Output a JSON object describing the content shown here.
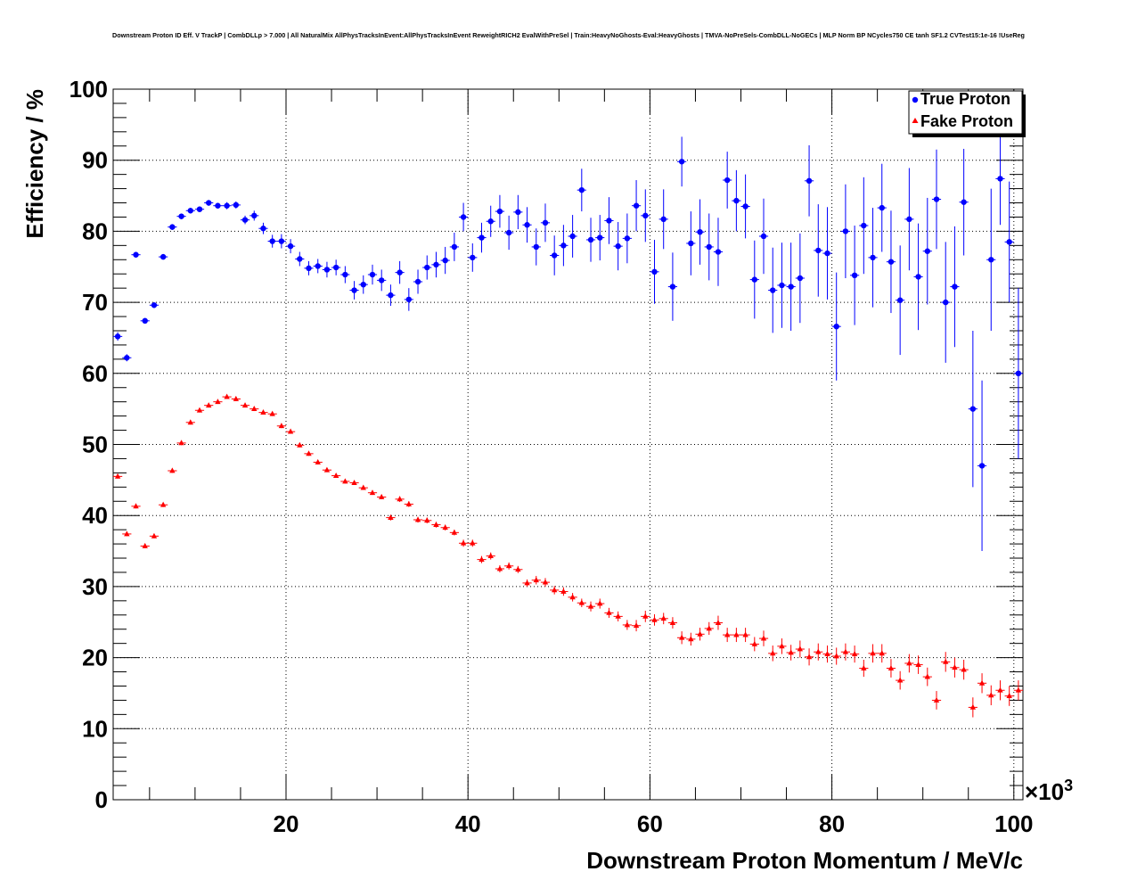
{
  "chart_data": {
    "type": "scatter",
    "title": "Downstream Proton ID Eff. V TrackP | CombDLLp > 7.000 | All NaturalMix AllPhysTracksInEvent:AllPhysTracksInEvent ReweightRICH2 EvalWithPreSel | Train:HeavyNoGhosts-Eval:HeavyGhosts | TMVA-NoPreSels-CombDLL-NoGECs | MLP Norm BP NCycles750 CE tanh SF1.2 CVTest15:1e-16 !UseReg",
    "xlabel": "Downstream Proton Momentum / MeV/c",
    "ylabel": "Efficiency / %",
    "x_multiplier": "×10",
    "x_multiplier_exp": "3",
    "xlim": [
      1,
      101
    ],
    "ylim": [
      0,
      100
    ],
    "x_ticks": [
      "20",
      "40",
      "60",
      "80",
      "100"
    ],
    "x_tick_values": [
      20,
      40,
      60,
      80,
      100
    ],
    "y_ticks": [
      "0",
      "10",
      "20",
      "30",
      "40",
      "50",
      "60",
      "70",
      "80",
      "90",
      "100"
    ],
    "y_tick_values": [
      0,
      10,
      20,
      30,
      40,
      50,
      60,
      70,
      80,
      90,
      100
    ],
    "grid": true,
    "legend_position": "top-right",
    "series": [
      {
        "name": "True Proton",
        "color": "#0000ff",
        "marker": "circle",
        "x": [
          1.5,
          2.5,
          3.5,
          4.5,
          5.5,
          6.5,
          7.5,
          8.5,
          9.5,
          10.5,
          11.5,
          12.5,
          13.5,
          14.5,
          15.5,
          16.5,
          17.5,
          18.5,
          19.5,
          20.5,
          21.5,
          22.5,
          23.5,
          24.5,
          25.5,
          26.5,
          27.5,
          28.5,
          29.5,
          30.5,
          31.5,
          32.5,
          33.5,
          34.5,
          35.5,
          36.5,
          37.5,
          38.5,
          39.5,
          40.5,
          41.5,
          42.5,
          43.5,
          44.5,
          45.5,
          46.5,
          47.5,
          48.5,
          49.5,
          50.5,
          51.5,
          52.5,
          53.5,
          54.5,
          55.5,
          56.5,
          57.5,
          58.5,
          59.5,
          60.5,
          61.5,
          62.5,
          63.5,
          64.5,
          65.5,
          66.5,
          67.5,
          68.5,
          69.5,
          70.5,
          71.5,
          72.5,
          73.5,
          74.5,
          75.5,
          76.5,
          77.5,
          78.5,
          79.5,
          80.5,
          81.5,
          82.5,
          83.5,
          84.5,
          85.5,
          86.5,
          87.5,
          88.5,
          89.5,
          90.5,
          91.5,
          92.5,
          93.5,
          94.5,
          95.5,
          96.5,
          97.5,
          98.5,
          99.5,
          100.5
        ],
        "y": [
          65.2,
          62.2,
          76.7,
          67.4,
          69.6,
          76.4,
          80.6,
          82.1,
          82.9,
          83.1,
          84.0,
          83.6,
          83.6,
          83.7,
          81.6,
          82.2,
          80.4,
          78.6,
          78.6,
          77.9,
          76.1,
          74.8,
          75.1,
          74.6,
          74.9,
          73.9,
          71.7,
          72.5,
          73.9,
          73.1,
          71.0,
          74.2,
          70.4,
          72.9,
          74.9,
          75.3,
          75.9,
          77.8,
          82.0,
          76.3,
          79.1,
          81.4,
          82.8,
          79.8,
          82.7,
          80.9,
          77.8,
          81.2,
          76.6,
          78.0,
          79.3,
          85.8,
          78.8,
          79.1,
          81.5,
          77.9,
          79.0,
          83.6,
          82.2,
          74.3,
          81.7,
          72.2,
          89.8,
          78.3,
          79.9,
          77.8,
          77.1,
          87.2,
          84.3,
          83.5,
          73.2,
          79.3,
          71.7,
          72.4,
          72.2,
          73.4,
          87.1,
          77.3,
          76.9,
          66.6,
          80.0,
          73.8,
          80.8,
          76.3,
          83.3,
          75.7,
          70.3,
          81.7,
          73.6,
          77.2,
          84.5,
          70.0,
          72.2,
          84.1,
          55.0,
          47.0,
          76.0,
          87.4,
          78.5,
          60.0
        ],
        "yerr": [
          0.6,
          0.5,
          0.4,
          0.4,
          0.4,
          0.4,
          0.4,
          0.4,
          0.4,
          0.4,
          0.4,
          0.4,
          0.5,
          0.5,
          0.6,
          0.7,
          0.8,
          0.9,
          1.0,
          1.0,
          1.0,
          1.0,
          1.0,
          1.1,
          1.1,
          1.2,
          1.3,
          1.3,
          1.4,
          1.5,
          1.5,
          1.6,
          1.6,
          1.7,
          1.7,
          1.8,
          1.9,
          2.0,
          2.0,
          2.0,
          2.1,
          2.2,
          2.3,
          2.4,
          2.4,
          2.5,
          2.6,
          2.7,
          2.8,
          2.9,
          3.0,
          3.0,
          3.1,
          3.2,
          3.3,
          3.4,
          3.5,
          3.6,
          3.7,
          4.5,
          4.2,
          4.8,
          3.5,
          4.5,
          4.6,
          4.7,
          4.8,
          4.0,
          4.3,
          4.5,
          5.5,
          5.3,
          6.0,
          6.0,
          6.2,
          6.3,
          5.0,
          6.5,
          6.5,
          7.6,
          6.6,
          7.0,
          6.8,
          7.0,
          6.2,
          7.2,
          7.7,
          7.2,
          7.5,
          7.5,
          7.0,
          8.5,
          8.5,
          7.5,
          11.0,
          12.0,
          10.0,
          6.5,
          8.5,
          12.0
        ]
      },
      {
        "name": "Fake Proton",
        "color": "#ff0000",
        "marker": "triangle",
        "x": [
          1.5,
          2.5,
          3.5,
          4.5,
          5.5,
          6.5,
          7.5,
          8.5,
          9.5,
          10.5,
          11.5,
          12.5,
          13.5,
          14.5,
          15.5,
          16.5,
          17.5,
          18.5,
          19.5,
          20.5,
          21.5,
          22.5,
          23.5,
          24.5,
          25.5,
          26.5,
          27.5,
          28.5,
          29.5,
          30.5,
          31.5,
          32.5,
          33.5,
          34.5,
          35.5,
          36.5,
          37.5,
          38.5,
          39.5,
          40.5,
          41.5,
          42.5,
          43.5,
          44.5,
          45.5,
          46.5,
          47.5,
          48.5,
          49.5,
          50.5,
          51.5,
          52.5,
          53.5,
          54.5,
          55.5,
          56.5,
          57.5,
          58.5,
          59.5,
          60.5,
          61.5,
          62.5,
          63.5,
          64.5,
          65.5,
          66.5,
          67.5,
          68.5,
          69.5,
          70.5,
          71.5,
          72.5,
          73.5,
          74.5,
          75.5,
          76.5,
          77.5,
          78.5,
          79.5,
          80.5,
          81.5,
          82.5,
          83.5,
          84.5,
          85.5,
          86.5,
          87.5,
          88.5,
          89.5,
          90.5,
          91.5,
          92.5,
          93.5,
          94.5,
          95.5,
          96.5,
          97.5,
          98.5,
          99.5,
          100.5
        ],
        "y": [
          45.5,
          37.4,
          41.3,
          35.7,
          37.1,
          41.5,
          46.3,
          50.2,
          53.1,
          54.8,
          55.5,
          56.0,
          56.7,
          56.4,
          55.5,
          55.0,
          54.5,
          54.3,
          52.6,
          51.8,
          49.9,
          48.7,
          47.5,
          46.4,
          45.6,
          44.8,
          44.6,
          43.9,
          43.2,
          42.6,
          39.7,
          42.3,
          41.6,
          39.4,
          39.3,
          38.7,
          38.3,
          37.6,
          36.1,
          36.1,
          33.8,
          34.3,
          32.5,
          32.9,
          32.4,
          30.5,
          30.9,
          30.6,
          29.5,
          29.3,
          28.5,
          27.7,
          27.2,
          27.6,
          26.3,
          25.8,
          24.6,
          24.5,
          25.8,
          25.3,
          25.5,
          24.9,
          22.8,
          22.6,
          23.3,
          24.1,
          24.9,
          23.2,
          23.2,
          23.2,
          21.9,
          22.7,
          20.6,
          21.6,
          20.7,
          21.2,
          20.1,
          20.8,
          20.5,
          20.2,
          20.8,
          20.5,
          18.5,
          20.6,
          20.6,
          18.5,
          16.8,
          19.2,
          19.0,
          17.3,
          14.0,
          19.4,
          18.6,
          18.3,
          13.0,
          16.4,
          14.7,
          15.4,
          14.6,
          15.4
        ],
        "yerr": [
          0.3,
          0.3,
          0.3,
          0.3,
          0.3,
          0.3,
          0.3,
          0.3,
          0.3,
          0.3,
          0.3,
          0.3,
          0.3,
          0.3,
          0.3,
          0.3,
          0.3,
          0.3,
          0.3,
          0.3,
          0.3,
          0.3,
          0.3,
          0.3,
          0.3,
          0.3,
          0.3,
          0.3,
          0.3,
          0.3,
          0.4,
          0.4,
          0.4,
          0.4,
          0.4,
          0.4,
          0.4,
          0.4,
          0.5,
          0.5,
          0.5,
          0.5,
          0.5,
          0.5,
          0.5,
          0.5,
          0.6,
          0.6,
          0.6,
          0.6,
          0.6,
          0.6,
          0.7,
          0.7,
          0.7,
          0.7,
          0.7,
          0.8,
          0.8,
          0.8,
          0.8,
          0.8,
          0.9,
          0.9,
          0.9,
          0.9,
          1.0,
          1.0,
          1.0,
          1.0,
          1.0,
          1.1,
          1.1,
          1.1,
          1.1,
          1.2,
          1.2,
          1.2,
          1.2,
          1.2,
          1.2,
          1.2,
          1.2,
          1.3,
          1.3,
          1.3,
          1.3,
          1.3,
          1.3,
          1.3,
          1.3,
          1.4,
          1.4,
          1.4,
          1.4,
          1.4,
          1.4,
          1.4,
          1.4,
          1.4
        ]
      }
    ]
  }
}
